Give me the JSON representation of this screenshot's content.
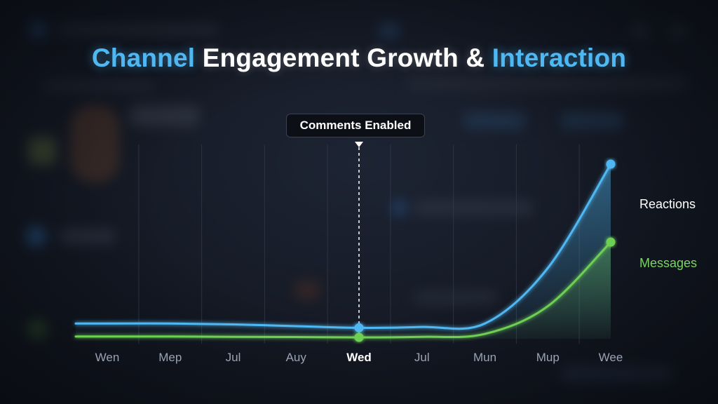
{
  "title": {
    "part1": "Channel",
    "part2": " Engagement Growth & ",
    "part3": "Interaction"
  },
  "colors": {
    "background": "#12161f",
    "title_accent": "#4fb8f2",
    "reactions": "#4fb8f2",
    "messages": "#6dcf52",
    "gridline": "#3a4150"
  },
  "chart_data": {
    "type": "area",
    "title": "Channel Engagement Growth & Interaction",
    "categories": [
      "Wen",
      "Mep",
      "Jul",
      "Auy",
      "Wed",
      "Jul",
      "Mun",
      "Mup",
      "Wee"
    ],
    "highlight_category_index": 4,
    "ylim": [
      0,
      100
    ],
    "y_ticks_shown": false,
    "grid": "vertical",
    "legend": "right",
    "series": [
      {
        "name": "Reactions",
        "values": [
          8,
          8,
          7.5,
          6.5,
          5.5,
          6,
          8,
          40,
          100
        ]
      },
      {
        "name": "Messages",
        "values": [
          0.5,
          0.5,
          0.3,
          0.2,
          0,
          0.3,
          2,
          18,
          55
        ]
      }
    ],
    "annotations": [
      {
        "category_index": 4,
        "text": "Comments Enabled"
      }
    ]
  },
  "legend": {
    "reactions": "Reactions",
    "messages": "Messages"
  }
}
